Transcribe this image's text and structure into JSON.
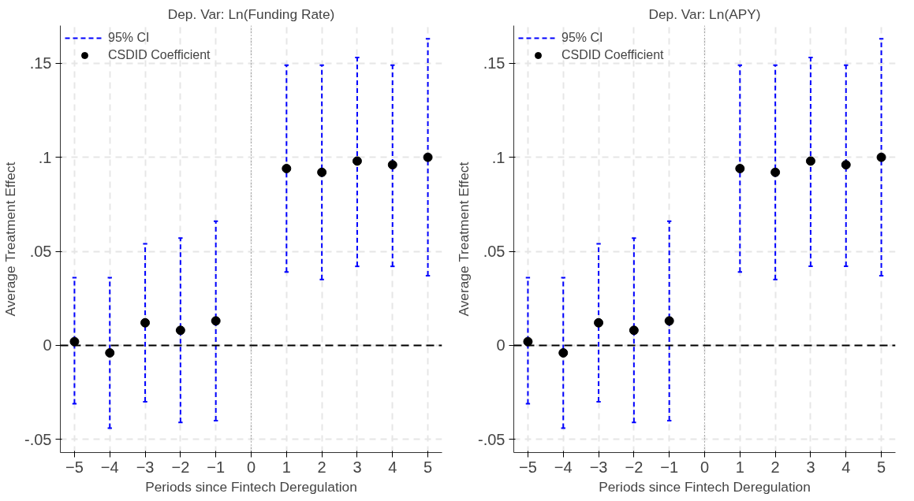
{
  "chart_data": [
    {
      "type": "scatter",
      "title": "Dep. Var: Ln(Funding Rate)",
      "xlabel": "Periods since Fintech Deregulation",
      "ylabel": "Average Treatment Effect",
      "legend_title": "95% CI",
      "x": [
        -5,
        -4,
        -3,
        -2,
        -1,
        1,
        2,
        3,
        4,
        5
      ],
      "series": [
        {
          "name": "CSDID Coefficient",
          "color": "#000000",
          "values": [
            0.002,
            -0.004,
            0.012,
            0.008,
            0.013,
            0.094,
            0.092,
            0.098,
            0.096,
            0.1
          ],
          "errors": [
            [
              -0.031,
              0.036
            ],
            [
              -0.044,
              0.036
            ],
            [
              -0.03,
              0.054
            ],
            [
              -0.041,
              0.057
            ],
            [
              -0.04,
              0.066
            ],
            [
              0.039,
              0.149
            ],
            [
              0.035,
              0.149
            ],
            [
              0.042,
              0.153
            ],
            [
              0.042,
              0.149
            ],
            [
              0.037,
              0.163
            ]
          ]
        }
      ],
      "xlim": [
        -5.4,
        5.4
      ],
      "ylim": [
        -0.057,
        0.17
      ],
      "xticks": [
        -5,
        -4,
        -3,
        -2,
        -1,
        0,
        1,
        2,
        3,
        4,
        5
      ],
      "yticks": [
        {
          "value": -0.05,
          "label": "-.05"
        },
        0,
        {
          "value": 0.05,
          "label": ".05"
        },
        {
          "value": 0.1,
          "label": ".1"
        },
        {
          "value": 0.15,
          "label": ".15"
        }
      ],
      "ref_lines": [
        {
          "axis": "y",
          "value": 0,
          "color": "#000000",
          "line_style": "dashed"
        },
        {
          "axis": "x",
          "value": 0,
          "color": "#666666",
          "line_style": "dotted"
        }
      ],
      "grid": true,
      "legend": "top left",
      "marker": "circle",
      "line_style": "dashed"
    },
    {
      "type": "scatter",
      "title": "Dep. Var: Ln(APY)",
      "xlabel": "Periods since Fintech Deregulation",
      "ylabel": "Average Treatment Effect",
      "legend_title": "95% CI",
      "x": [
        -5,
        -4,
        -3,
        -2,
        -1,
        1,
        2,
        3,
        4,
        5
      ],
      "series": [
        {
          "name": "CSDID Coefficient",
          "color": "#000000",
          "values": [
            0.002,
            -0.004,
            0.012,
            0.008,
            0.013,
            0.094,
            0.092,
            0.098,
            0.096,
            0.1
          ],
          "errors": [
            [
              -0.031,
              0.036
            ],
            [
              -0.044,
              0.036
            ],
            [
              -0.03,
              0.054
            ],
            [
              -0.041,
              0.057
            ],
            [
              -0.04,
              0.066
            ],
            [
              0.039,
              0.149
            ],
            [
              0.035,
              0.149
            ],
            [
              0.042,
              0.153
            ],
            [
              0.042,
              0.149
            ],
            [
              0.037,
              0.163
            ]
          ]
        }
      ],
      "xlim": [
        -5.4,
        5.4
      ],
      "ylim": [
        -0.057,
        0.17
      ],
      "xticks": [
        -5,
        -4,
        -3,
        -2,
        -1,
        0,
        1,
        2,
        3,
        4,
        5
      ],
      "yticks": [
        {
          "value": -0.05,
          "label": "-.05"
        },
        0,
        {
          "value": 0.05,
          "label": ".05"
        },
        {
          "value": 0.1,
          "label": ".1"
        },
        {
          "value": 0.15,
          "label": ".15"
        }
      ],
      "ref_lines": [
        {
          "axis": "y",
          "value": 0,
          "color": "#000000",
          "line_style": "dashed"
        },
        {
          "axis": "x",
          "value": 0,
          "color": "#666666",
          "line_style": "dotted"
        }
      ],
      "grid": true,
      "legend": "top left",
      "marker": "circle",
      "line_style": "dashed"
    }
  ]
}
